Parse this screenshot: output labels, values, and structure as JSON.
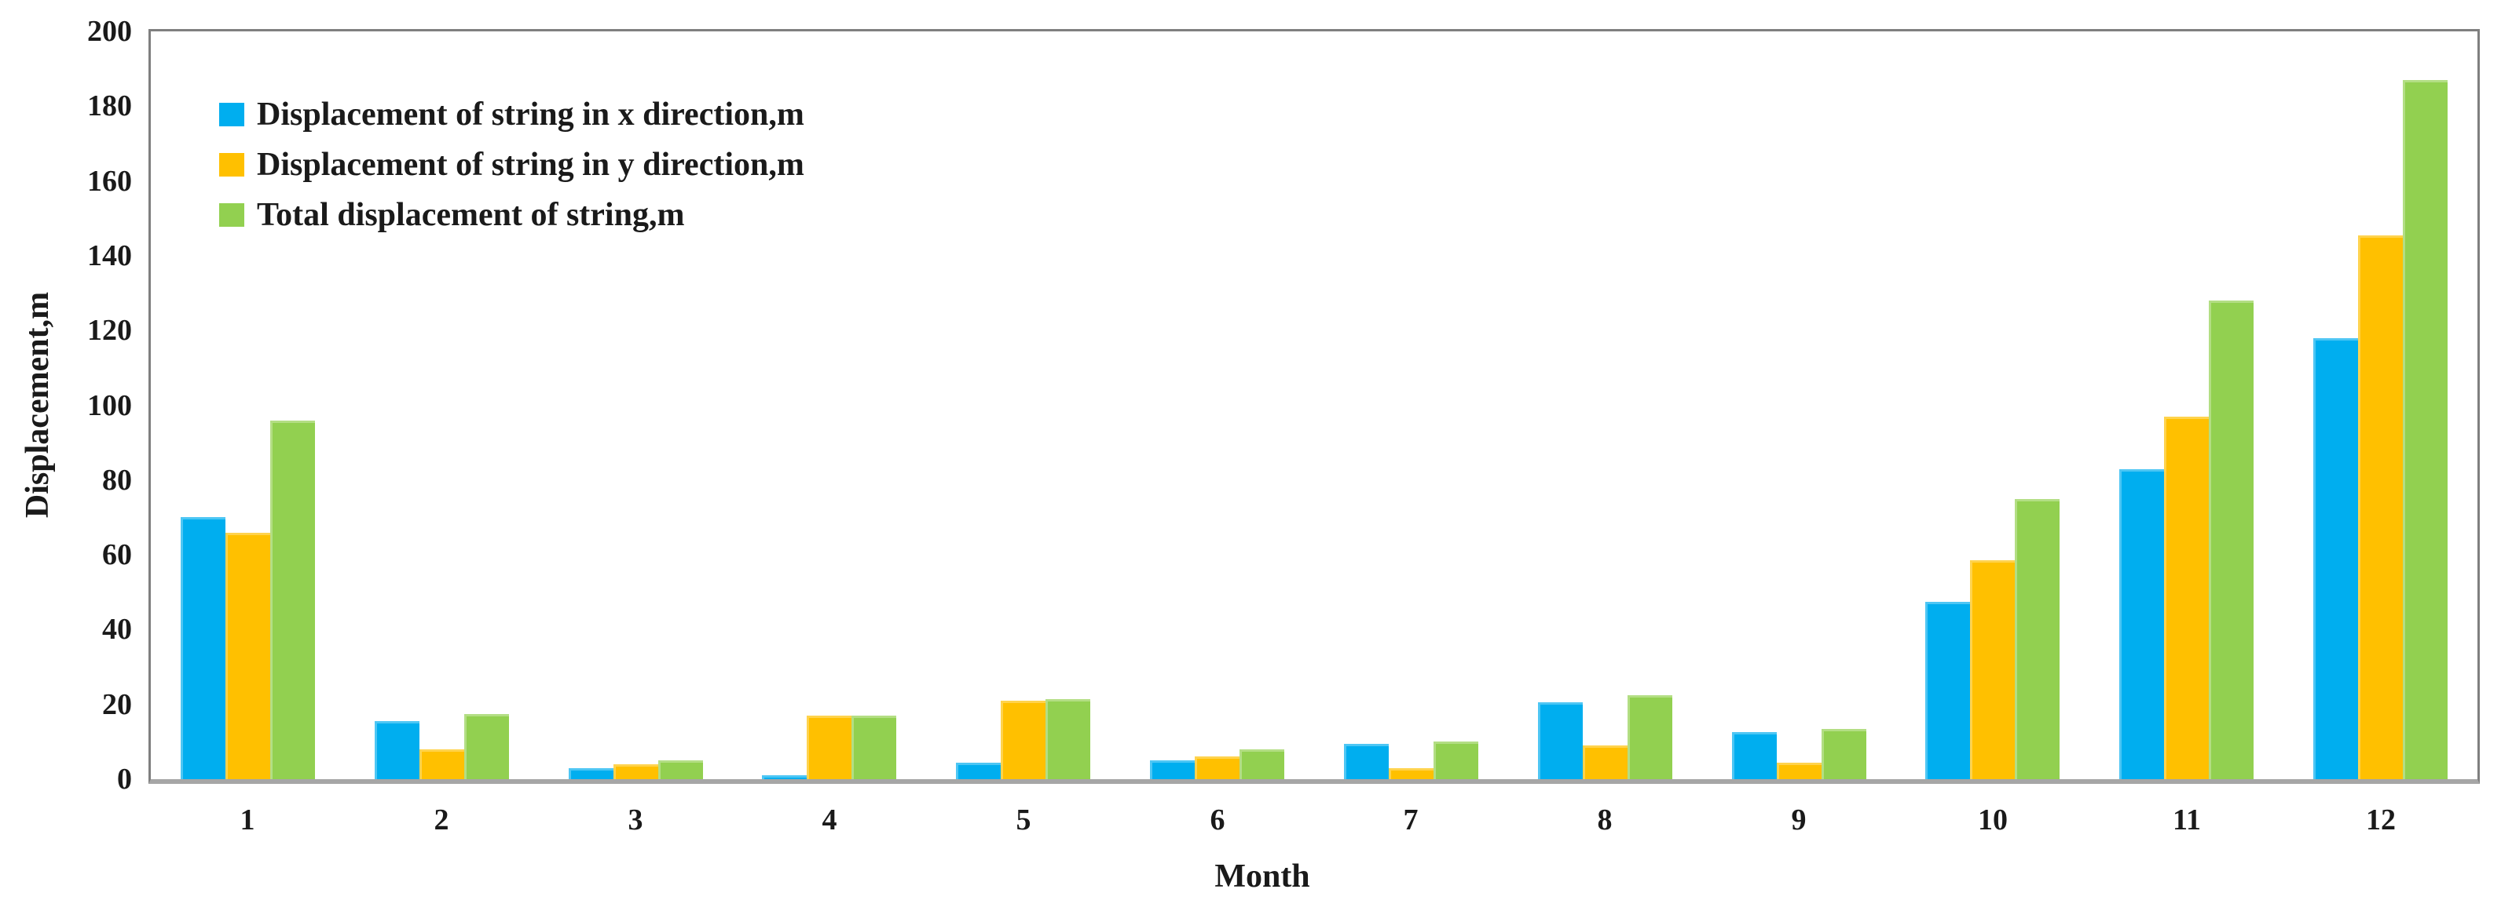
{
  "chart_data": {
    "type": "bar",
    "title": "",
    "categories": [
      "1",
      "2",
      "3",
      "4",
      "5",
      "6",
      "7",
      "8",
      "9",
      "10",
      "11",
      "12"
    ],
    "series": [
      {
        "name": "Displacement of string in x direction,m",
        "color": "#00AEEF",
        "values": [
          70,
          15.5,
          3,
          1,
          4.5,
          5,
          9.5,
          20.5,
          12.5,
          47.5,
          83,
          118
        ]
      },
      {
        "name": "Displacement of string in y direction,m",
        "color": "#FFC000",
        "values": [
          66,
          8,
          4,
          17,
          21,
          6,
          3,
          9,
          4.5,
          58.5,
          97,
          145.5
        ]
      },
      {
        "name": "Total displacement of string,m",
        "color": "#92D050",
        "values": [
          96,
          17.5,
          5,
          17,
          21.5,
          8,
          10,
          22.5,
          13.5,
          75,
          128,
          187
        ]
      }
    ],
    "xlabel": "Month",
    "ylabel": "Displacement,m",
    "ylim": [
      0,
      200
    ],
    "ytick_step": 20,
    "ytick_labels": [
      "0",
      "20",
      "40",
      "60",
      "80",
      "100",
      "120",
      "140",
      "160",
      "180",
      "200"
    ],
    "grid": false,
    "legend_position": "top-left",
    "frame_color": "#7f7f7f",
    "axis_line_color": "#a6a6a6",
    "text_color": "#1a1a1a"
  }
}
